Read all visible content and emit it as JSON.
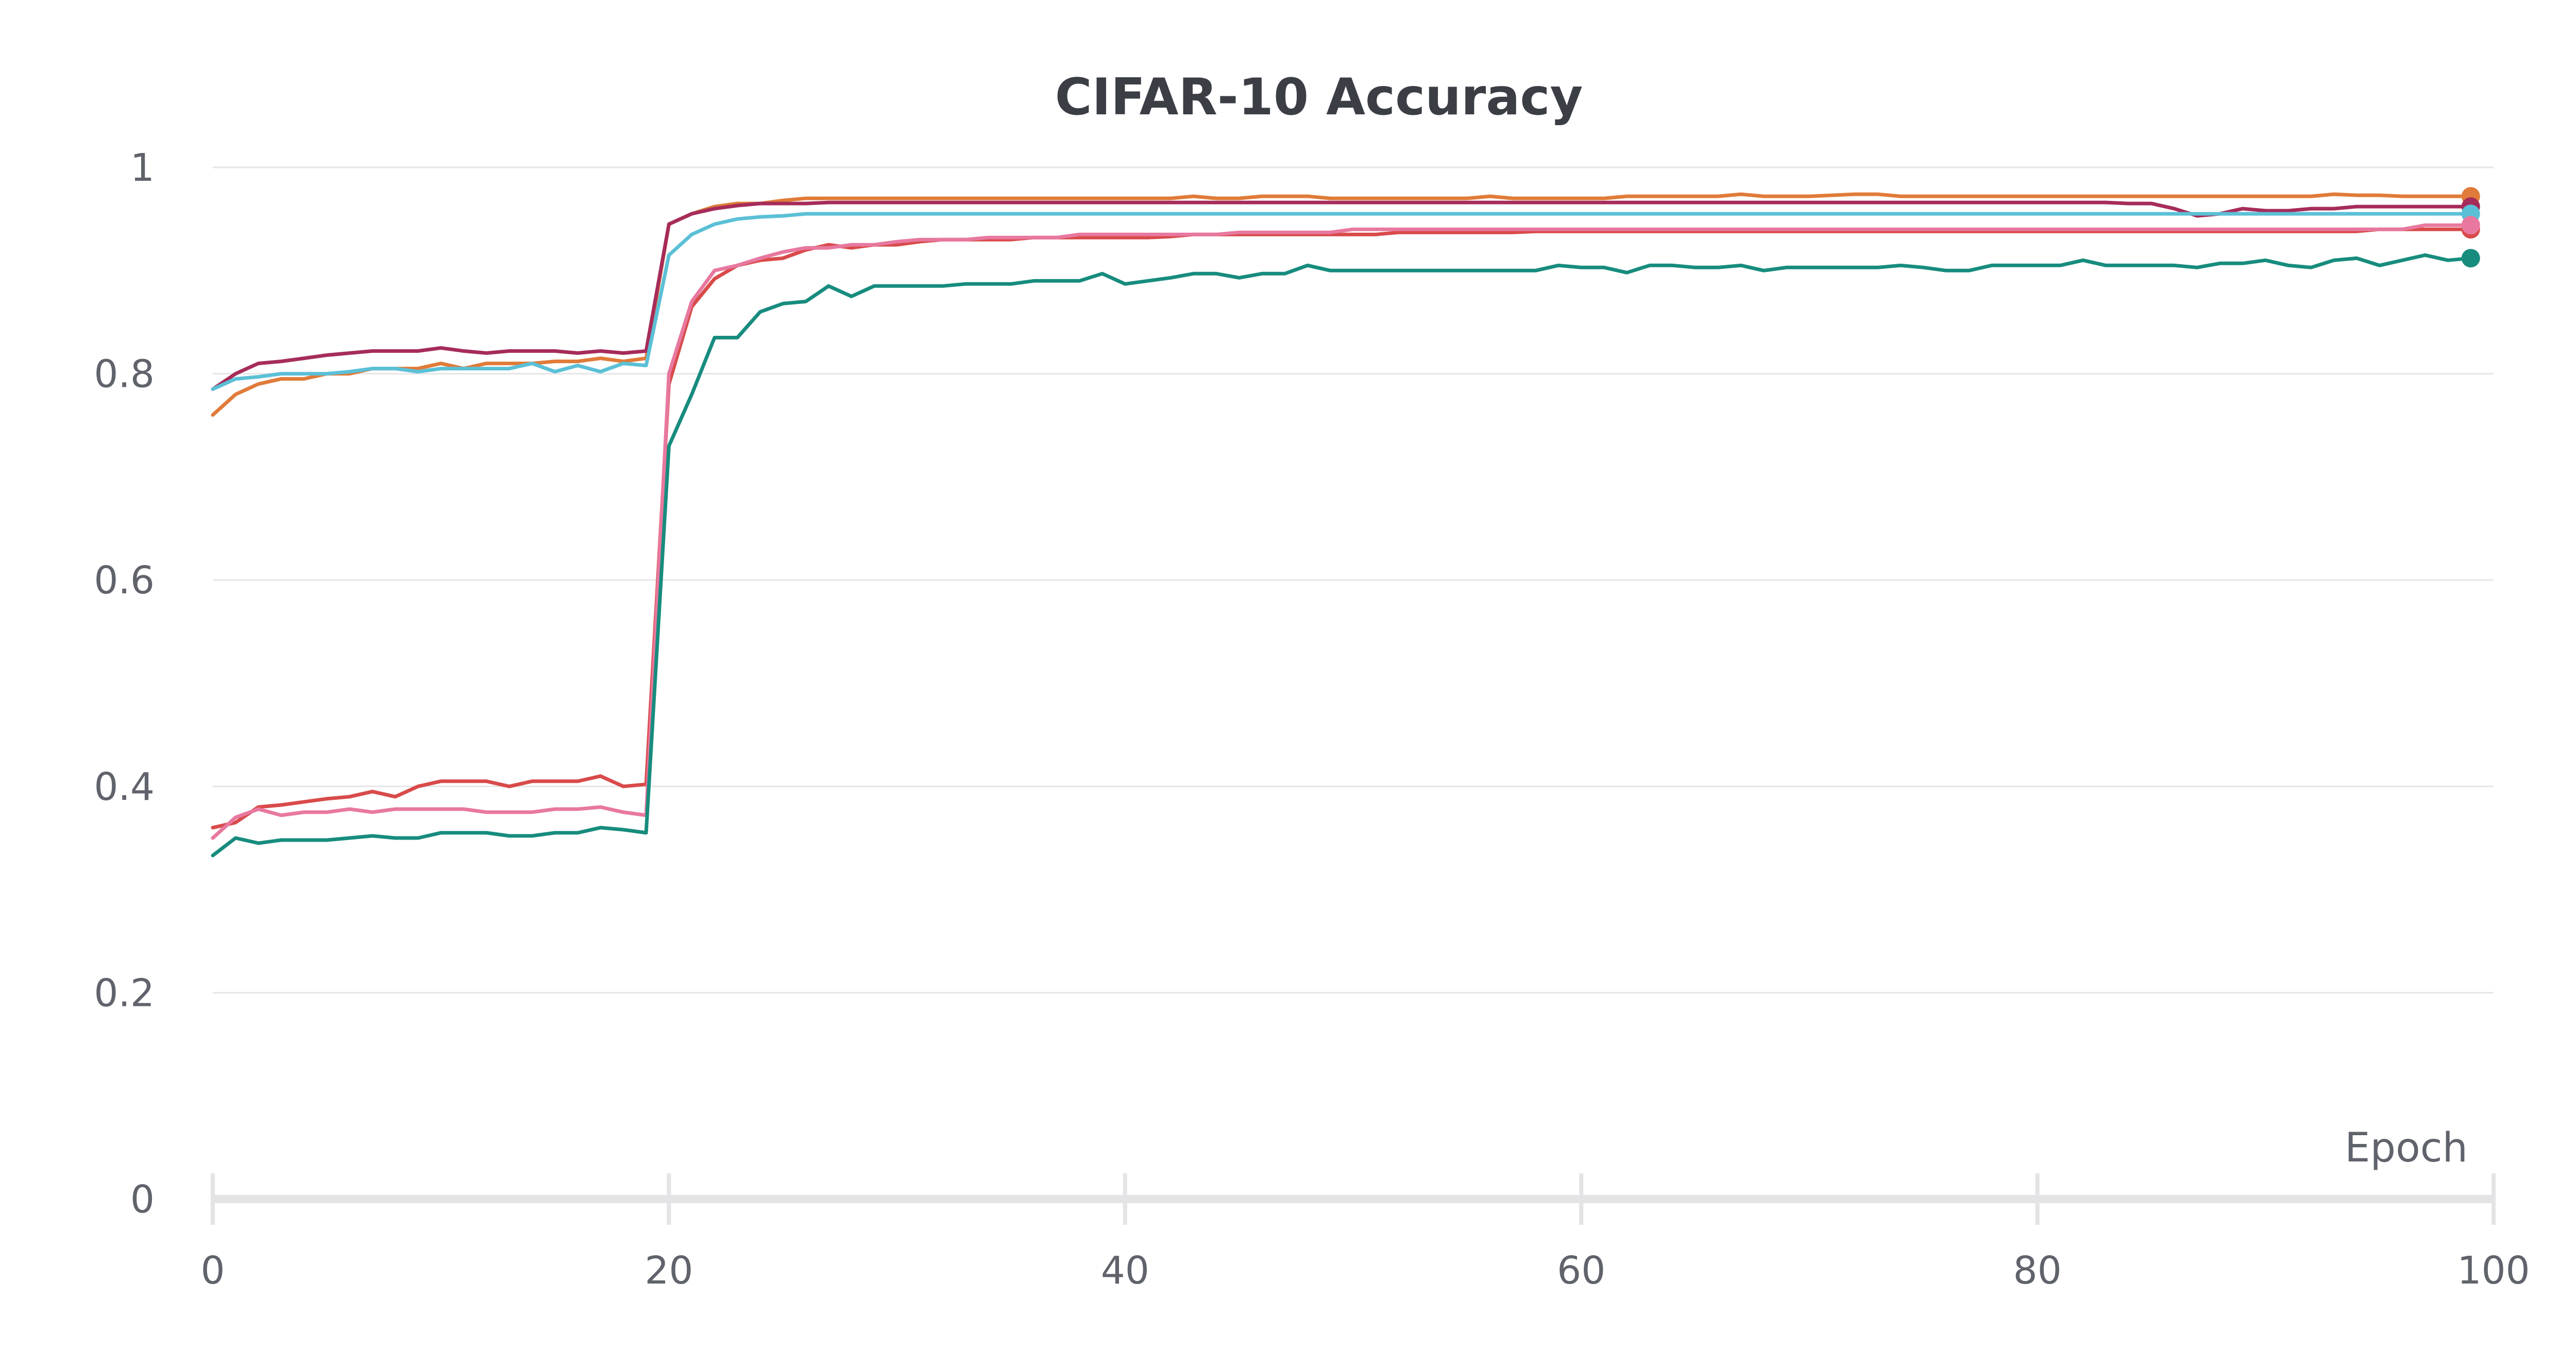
{
  "chart_data": {
    "type": "line",
    "title": "CIFAR-10 Accuracy",
    "xlabel": "Epoch",
    "ylabel": "",
    "xlim": [
      0,
      100
    ],
    "ylim": [
      0,
      1
    ],
    "xticks": [
      0,
      20,
      40,
      60,
      80,
      100
    ],
    "yticks": [
      0,
      0.2,
      0.4,
      0.6,
      0.8,
      1
    ],
    "xtick_labels": [
      "0",
      "20",
      "40",
      "60",
      "80",
      "100"
    ],
    "ytick_labels": [
      "0",
      "0.2",
      "0.4",
      "0.6",
      "0.8",
      "1"
    ],
    "grid": true,
    "legend": "none",
    "series": [
      {
        "color": "#e07b39",
        "values": [
          0.76,
          0.78,
          0.79,
          0.795,
          0.795,
          0.8,
          0.8,
          0.805,
          0.805,
          0.805,
          0.81,
          0.805,
          0.81,
          0.81,
          0.81,
          0.812,
          0.812,
          0.815,
          0.812,
          0.815,
          0.945,
          0.955,
          0.962,
          0.965,
          0.965,
          0.968,
          0.97,
          0.97,
          0.97,
          0.97,
          0.97,
          0.97,
          0.97,
          0.97,
          0.97,
          0.97,
          0.97,
          0.97,
          0.97,
          0.97,
          0.97,
          0.97,
          0.97,
          0.972,
          0.97,
          0.97,
          0.972,
          0.972,
          0.972,
          0.97,
          0.97,
          0.97,
          0.97,
          0.97,
          0.97,
          0.97,
          0.972,
          0.97,
          0.97,
          0.97,
          0.97,
          0.97,
          0.972,
          0.972,
          0.972,
          0.972,
          0.972,
          0.974,
          0.972,
          0.972,
          0.972,
          0.973,
          0.974,
          0.974,
          0.972,
          0.972,
          0.972,
          0.972,
          0.972,
          0.972,
          0.972,
          0.972,
          0.972,
          0.972,
          0.972,
          0.972,
          0.972,
          0.972,
          0.972,
          0.972,
          0.972,
          0.972,
          0.972,
          0.974,
          0.973,
          0.973,
          0.972,
          0.972,
          0.972,
          0.972
        ]
      },
      {
        "color": "#a62c5a",
        "values": [
          0.785,
          0.8,
          0.81,
          0.812,
          0.815,
          0.818,
          0.82,
          0.822,
          0.822,
          0.822,
          0.825,
          0.822,
          0.82,
          0.822,
          0.822,
          0.822,
          0.82,
          0.822,
          0.82,
          0.822,
          0.945,
          0.955,
          0.96,
          0.963,
          0.965,
          0.965,
          0.965,
          0.966,
          0.966,
          0.966,
          0.966,
          0.966,
          0.966,
          0.966,
          0.966,
          0.966,
          0.966,
          0.966,
          0.966,
          0.966,
          0.966,
          0.966,
          0.966,
          0.966,
          0.966,
          0.966,
          0.966,
          0.966,
          0.966,
          0.966,
          0.966,
          0.966,
          0.966,
          0.966,
          0.966,
          0.966,
          0.966,
          0.966,
          0.966,
          0.966,
          0.966,
          0.966,
          0.966,
          0.966,
          0.966,
          0.966,
          0.966,
          0.966,
          0.966,
          0.966,
          0.966,
          0.966,
          0.966,
          0.966,
          0.966,
          0.966,
          0.966,
          0.966,
          0.966,
          0.966,
          0.966,
          0.966,
          0.966,
          0.966,
          0.965,
          0.965,
          0.96,
          0.953,
          0.955,
          0.96,
          0.958,
          0.958,
          0.96,
          0.96,
          0.962,
          0.962,
          0.962,
          0.962,
          0.962,
          0.962
        ]
      },
      {
        "color": "#5bc0d6",
        "values": [
          0.785,
          0.795,
          0.797,
          0.8,
          0.8,
          0.8,
          0.802,
          0.805,
          0.805,
          0.802,
          0.805,
          0.805,
          0.805,
          0.805,
          0.81,
          0.802,
          0.808,
          0.802,
          0.81,
          0.808,
          0.915,
          0.935,
          0.945,
          0.95,
          0.952,
          0.953,
          0.955,
          0.955,
          0.955,
          0.955,
          0.955,
          0.955,
          0.955,
          0.955,
          0.955,
          0.955,
          0.955,
          0.955,
          0.955,
          0.955,
          0.955,
          0.955,
          0.955,
          0.955,
          0.955,
          0.955,
          0.955,
          0.955,
          0.955,
          0.955,
          0.955,
          0.955,
          0.955,
          0.955,
          0.955,
          0.955,
          0.955,
          0.955,
          0.955,
          0.955,
          0.955,
          0.955,
          0.955,
          0.955,
          0.955,
          0.955,
          0.955,
          0.955,
          0.955,
          0.955,
          0.955,
          0.955,
          0.955,
          0.955,
          0.955,
          0.955,
          0.955,
          0.955,
          0.955,
          0.955,
          0.955,
          0.955,
          0.955,
          0.955,
          0.955,
          0.955,
          0.955,
          0.955,
          0.955,
          0.955,
          0.955,
          0.955,
          0.955,
          0.955,
          0.955,
          0.955,
          0.955,
          0.955,
          0.955,
          0.955
        ]
      },
      {
        "color": "#d94a4a",
        "values": [
          0.36,
          0.365,
          0.38,
          0.382,
          0.385,
          0.388,
          0.39,
          0.395,
          0.39,
          0.4,
          0.405,
          0.405,
          0.405,
          0.4,
          0.405,
          0.405,
          0.405,
          0.41,
          0.4,
          0.402,
          0.79,
          0.865,
          0.892,
          0.905,
          0.91,
          0.912,
          0.92,
          0.925,
          0.922,
          0.925,
          0.925,
          0.928,
          0.93,
          0.93,
          0.93,
          0.93,
          0.932,
          0.932,
          0.932,
          0.932,
          0.932,
          0.932,
          0.933,
          0.935,
          0.935,
          0.935,
          0.935,
          0.935,
          0.935,
          0.935,
          0.935,
          0.935,
          0.937,
          0.937,
          0.937,
          0.937,
          0.937,
          0.937,
          0.938,
          0.938,
          0.938,
          0.938,
          0.938,
          0.938,
          0.938,
          0.938,
          0.938,
          0.938,
          0.938,
          0.938,
          0.938,
          0.938,
          0.938,
          0.938,
          0.938,
          0.938,
          0.938,
          0.938,
          0.938,
          0.938,
          0.938,
          0.938,
          0.938,
          0.938,
          0.938,
          0.938,
          0.938,
          0.938,
          0.938,
          0.938,
          0.938,
          0.938,
          0.938,
          0.938,
          0.938,
          0.94,
          0.94,
          0.94,
          0.94,
          0.94
        ]
      },
      {
        "color": "#e8789f",
        "values": [
          0.35,
          0.37,
          0.378,
          0.372,
          0.375,
          0.375,
          0.378,
          0.375,
          0.378,
          0.378,
          0.378,
          0.378,
          0.375,
          0.375,
          0.375,
          0.378,
          0.378,
          0.38,
          0.375,
          0.372,
          0.8,
          0.87,
          0.9,
          0.905,
          0.912,
          0.918,
          0.922,
          0.922,
          0.925,
          0.925,
          0.928,
          0.93,
          0.93,
          0.93,
          0.932,
          0.932,
          0.932,
          0.932,
          0.935,
          0.935,
          0.935,
          0.935,
          0.935,
          0.935,
          0.935,
          0.937,
          0.937,
          0.937,
          0.937,
          0.937,
          0.94,
          0.94,
          0.94,
          0.94,
          0.94,
          0.94,
          0.94,
          0.94,
          0.94,
          0.94,
          0.94,
          0.94,
          0.94,
          0.94,
          0.94,
          0.94,
          0.94,
          0.94,
          0.94,
          0.94,
          0.94,
          0.94,
          0.94,
          0.94,
          0.94,
          0.94,
          0.94,
          0.94,
          0.94,
          0.94,
          0.94,
          0.94,
          0.94,
          0.94,
          0.94,
          0.94,
          0.94,
          0.94,
          0.94,
          0.94,
          0.94,
          0.94,
          0.94,
          0.94,
          0.94,
          0.94,
          0.94,
          0.944,
          0.944,
          0.944
        ]
      },
      {
        "color": "#178c7e",
        "values": [
          0.333,
          0.35,
          0.345,
          0.348,
          0.348,
          0.348,
          0.35,
          0.352,
          0.35,
          0.35,
          0.355,
          0.355,
          0.355,
          0.352,
          0.352,
          0.355,
          0.355,
          0.36,
          0.358,
          0.355,
          0.73,
          0.78,
          0.835,
          0.835,
          0.86,
          0.868,
          0.87,
          0.885,
          0.875,
          0.885,
          0.885,
          0.885,
          0.885,
          0.887,
          0.887,
          0.887,
          0.89,
          0.89,
          0.89,
          0.897,
          0.887,
          0.89,
          0.893,
          0.897,
          0.897,
          0.893,
          0.897,
          0.897,
          0.905,
          0.9,
          0.9,
          0.9,
          0.9,
          0.9,
          0.9,
          0.9,
          0.9,
          0.9,
          0.9,
          0.905,
          0.903,
          0.903,
          0.898,
          0.905,
          0.905,
          0.903,
          0.903,
          0.905,
          0.9,
          0.903,
          0.903,
          0.903,
          0.903,
          0.903,
          0.905,
          0.903,
          0.9,
          0.9,
          0.905,
          0.905,
          0.905,
          0.905,
          0.91,
          0.905,
          0.905,
          0.905,
          0.905,
          0.903,
          0.907,
          0.907,
          0.91,
          0.905,
          0.903,
          0.91,
          0.912,
          0.905,
          0.91,
          0.915,
          0.91,
          0.912
        ]
      }
    ]
  }
}
